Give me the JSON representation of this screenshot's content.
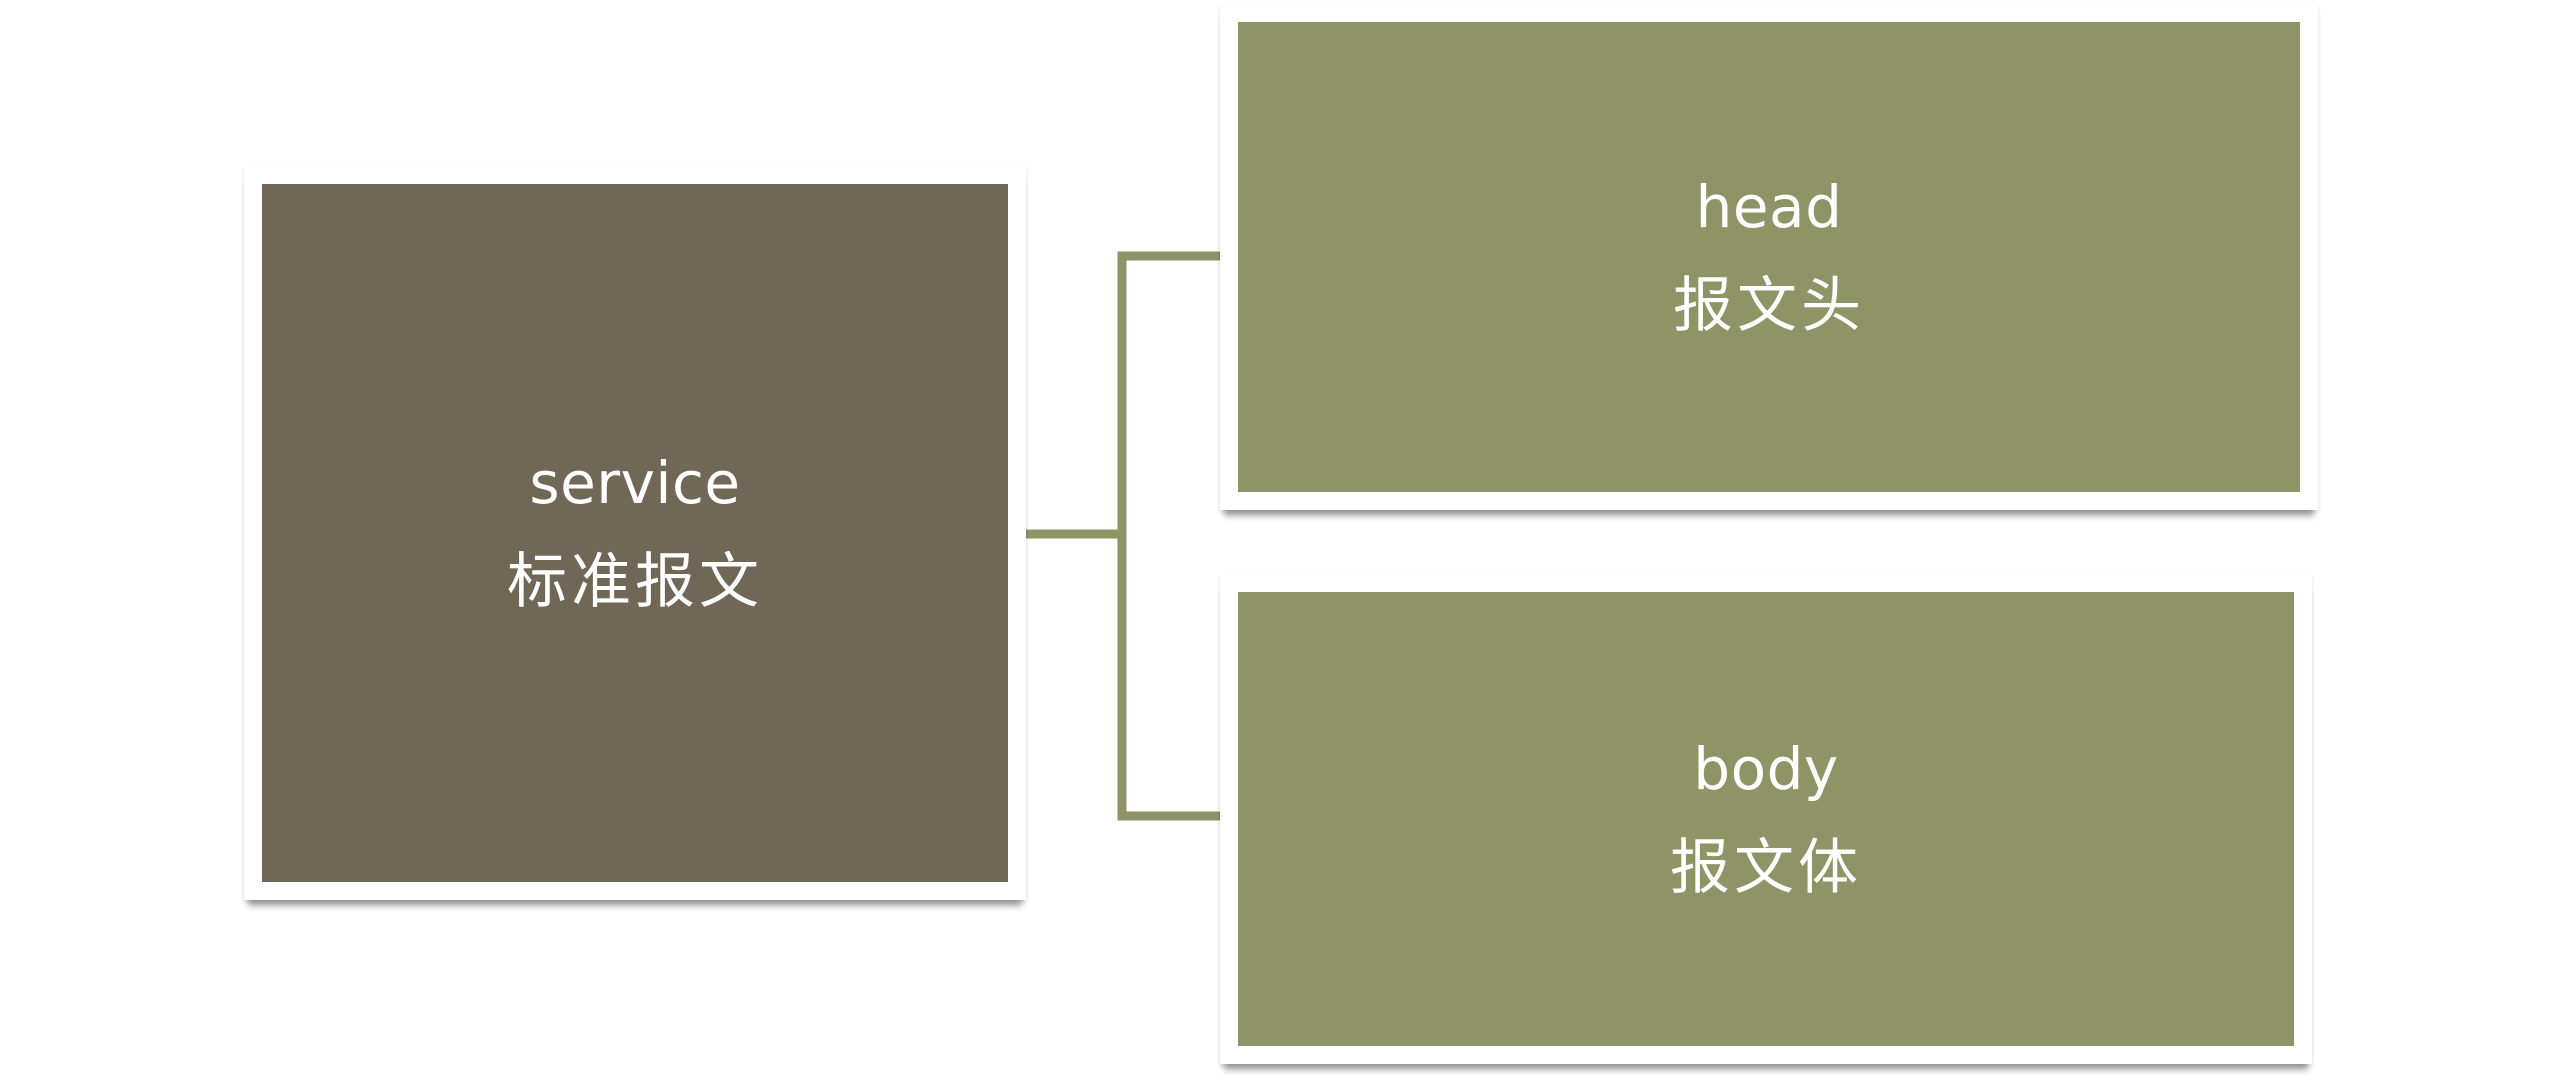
{
  "nodes": {
    "service": {
      "title": "service",
      "subtitle": "标准报文"
    },
    "head": {
      "title": "head",
      "subtitle": "报文头"
    },
    "body": {
      "title": "body",
      "subtitle": "报文体"
    }
  },
  "colors": {
    "root_fill": "#706756",
    "child_fill": "#8f9467",
    "connector": "#8f9467",
    "frame": "#ffffff"
  }
}
